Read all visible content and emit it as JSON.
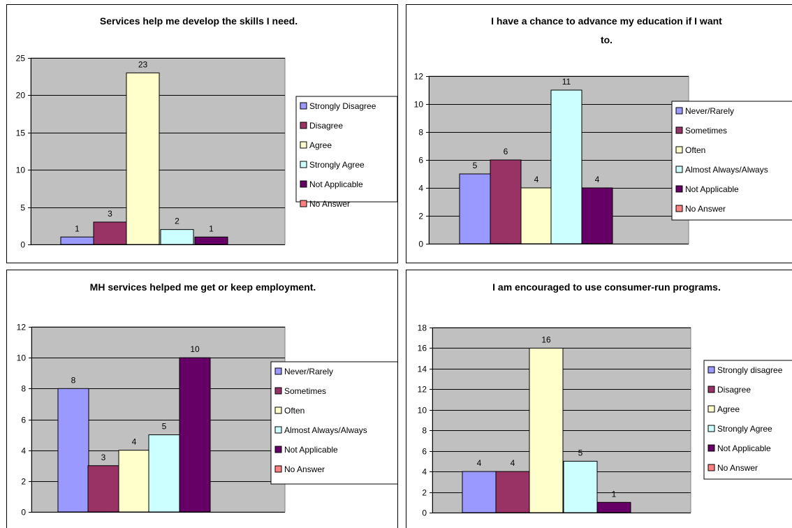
{
  "colors": {
    "plot_bg": "#c0c0c0",
    "series": [
      "#9999ff",
      "#993366",
      "#ffffcc",
      "#ccffff",
      "#660066",
      "#ff8080"
    ]
  },
  "chart_data": [
    {
      "type": "bar",
      "title_lines": [
        "Services help me develop the skills I need."
      ],
      "categories": [
        "Strongly Disagree",
        "Disagree",
        "Agree",
        "Strongly Agree",
        "Not Applicable",
        "No Answer"
      ],
      "values": [
        1,
        3,
        23,
        2,
        1,
        null
      ],
      "ylim": [
        0,
        25
      ],
      "yticks": [
        0,
        5,
        10,
        15,
        20,
        25
      ],
      "grid": true,
      "legend": "right"
    },
    {
      "type": "bar",
      "title_lines": [
        "I have a chance to advance my education if I want",
        "to."
      ],
      "categories": [
        "Never/Rarely",
        "Sometimes",
        "Often",
        "Almost Always/Always",
        "Not Applicable",
        "No Answer"
      ],
      "values": [
        5,
        6,
        4,
        11,
        4,
        null
      ],
      "ylim": [
        0,
        12
      ],
      "yticks": [
        0,
        2,
        4,
        6,
        8,
        10,
        12
      ],
      "grid": true,
      "legend": "right"
    },
    {
      "type": "bar",
      "title_lines": [
        "MH services helped me get or keep employment."
      ],
      "categories": [
        "Never/Rarely",
        "Sometimes",
        "Often",
        "Almost Always/Always",
        "Not Applicable",
        "No Answer"
      ],
      "values": [
        8,
        3,
        4,
        5,
        10,
        null
      ],
      "ylim": [
        0,
        12
      ],
      "yticks": [
        0,
        2,
        4,
        6,
        8,
        10,
        12
      ],
      "grid": true,
      "legend": "right"
    },
    {
      "type": "bar",
      "title_lines": [
        "I am encouraged to use consumer-run programs."
      ],
      "categories": [
        "Strongly disagree",
        "Disagree",
        "Agree",
        "Strongly Agree",
        "Not Applicable",
        "No Answer"
      ],
      "values": [
        4,
        4,
        16,
        5,
        1,
        null
      ],
      "ylim": [
        0,
        18
      ],
      "yticks": [
        0,
        2,
        4,
        6,
        8,
        10,
        12,
        14,
        16,
        18
      ],
      "grid": true,
      "legend": "right"
    }
  ]
}
